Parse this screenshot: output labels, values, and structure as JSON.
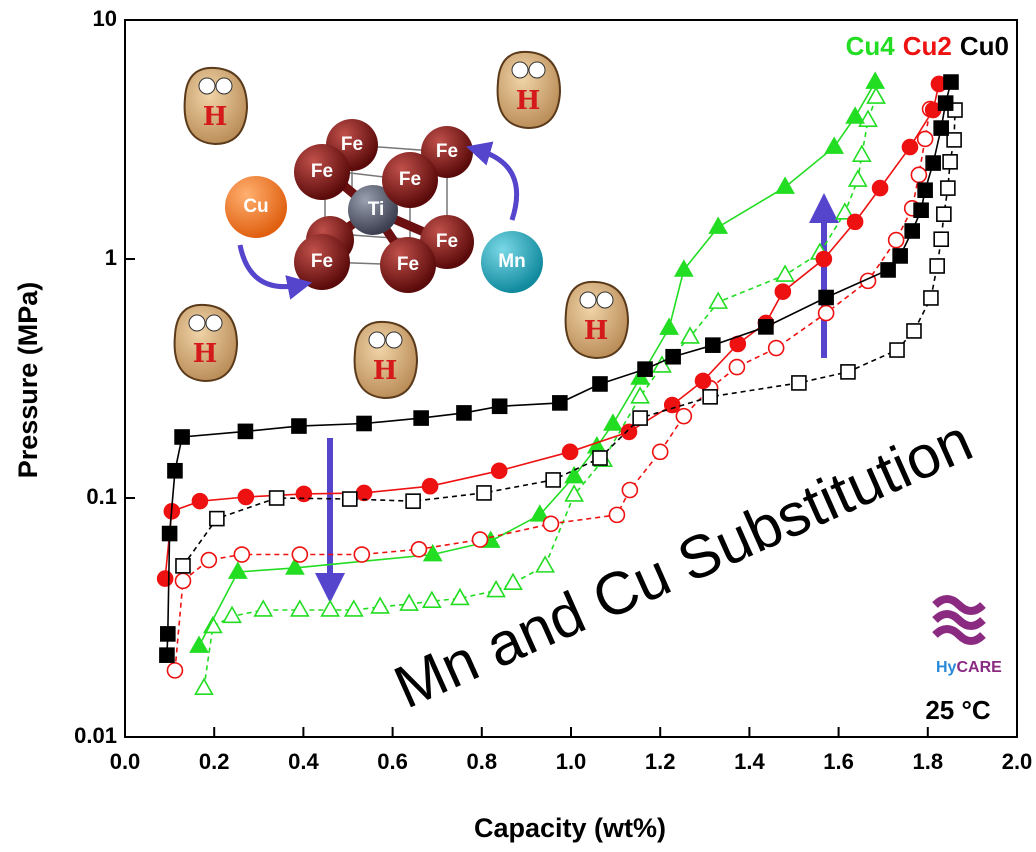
{
  "chart_data": {
    "type": "scatter",
    "x_label": "Capacity (wt%)",
    "y_label": "Pressure (MPa)",
    "xlim": [
      0,
      2
    ],
    "xticks": [
      {
        "value": 0,
        "label": "0.0"
      },
      0.2,
      0.4,
      0.6,
      0.8,
      {
        "value": 1,
        "label": "1.0"
      },
      1.2,
      1.4,
      1.6,
      1.8,
      {
        "value": 2,
        "label": "2.0"
      }
    ],
    "ylim": [
      0.01,
      10
    ],
    "yticks": [
      0.01,
      0.1,
      1,
      10
    ],
    "log_y": true,
    "legend": "top-right",
    "series": [
      {
        "name": "Cu4",
        "color": "#22dd22",
        "marker": "triangle",
        "absorption": {
          "filled": true,
          "dashed": false,
          "x": [
            0.166,
            0.253,
            0.381,
            0.69,
            0.82,
            0.93,
            1.007,
            1.058,
            1.094,
            1.155,
            1.22,
            1.253,
            1.33,
            1.48,
            1.59,
            1.637,
            1.682
          ],
          "values": [
            0.024,
            0.049,
            0.051,
            0.058,
            0.066,
            0.085,
            0.123,
            0.164,
            0.204,
            0.318,
            0.514,
            0.9,
            1.36,
            2.0,
            2.94,
            3.93,
            5.5
          ]
        },
        "desorption": {
          "filled": false,
          "dashed": true,
          "x": [
            0.177,
            0.197,
            0.24,
            0.31,
            0.392,
            0.46,
            0.513,
            0.572,
            0.637,
            0.688,
            0.751,
            0.832,
            0.87,
            0.942,
            1.007,
            1.072,
            1.155,
            1.204,
            1.267,
            1.33,
            1.48,
            1.558,
            1.614,
            1.643,
            1.652,
            1.666,
            1.684
          ],
          "values": [
            0.016,
            0.029,
            0.032,
            0.034,
            0.034,
            0.034,
            0.034,
            0.035,
            0.036,
            0.037,
            0.038,
            0.041,
            0.044,
            0.052,
            0.103,
            0.144,
            0.265,
            0.357,
            0.472,
            0.66,
            0.857,
            1.06,
            1.56,
            2.14,
            2.72,
            3.81,
            4.76
          ]
        }
      },
      {
        "name": "Cu2",
        "color": "#ee1111",
        "marker": "circle",
        "absorption": {
          "filled": true,
          "dashed": false,
          "x": [
            0.09,
            0.105,
            0.168,
            0.271,
            0.401,
            0.536,
            0.684,
            0.839,
            0.998,
            1.13,
            1.227,
            1.296,
            1.374,
            1.437,
            1.475,
            1.567,
            1.637,
            1.693,
            1.76,
            1.812,
            1.825
          ],
          "values": [
            0.046,
            0.088,
            0.097,
            0.101,
            0.104,
            0.105,
            0.112,
            0.13,
            0.156,
            0.189,
            0.245,
            0.309,
            0.441,
            0.54,
            0.73,
            1.0,
            1.43,
            1.98,
            2.94,
            4.2,
            5.4
          ]
        },
        "desorption": {
          "filled": false,
          "dashed": true,
          "x": [
            0.112,
            0.13,
            0.188,
            0.262,
            0.392,
            0.531,
            0.659,
            0.796,
            0.955,
            1.103,
            1.132,
            1.2,
            1.253,
            1.312,
            1.372,
            1.46,
            1.572,
            1.666,
            1.729,
            1.765,
            1.78,
            1.794,
            1.805
          ],
          "values": [
            0.019,
            0.045,
            0.055,
            0.058,
            0.058,
            0.058,
            0.061,
            0.067,
            0.078,
            0.085,
            0.108,
            0.156,
            0.22,
            0.288,
            0.353,
            0.424,
            0.594,
            0.81,
            1.2,
            1.63,
            2.25,
            3.18,
            4.24
          ]
        }
      },
      {
        "name": "Cu0",
        "color": "#000000",
        "marker": "square",
        "absorption": {
          "filled": true,
          "dashed": false,
          "x": [
            0.094,
            0.096,
            0.1,
            0.112,
            0.128,
            0.27,
            0.39,
            0.536,
            0.664,
            0.76,
            0.84,
            0.975,
            1.065,
            1.166,
            1.229,
            1.318,
            1.437,
            1.572,
            1.711,
            1.738,
            1.765,
            1.785,
            1.794,
            1.812,
            1.83,
            1.84,
            1.852
          ],
          "values": [
            0.022,
            0.027,
            0.071,
            0.13,
            0.18,
            0.19,
            0.2,
            0.205,
            0.216,
            0.227,
            0.242,
            0.25,
            0.3,
            0.346,
            0.39,
            0.436,
            0.52,
            0.69,
            0.9,
            1.03,
            1.31,
            1.6,
            1.94,
            2.52,
            3.53,
            4.49,
            5.5
          ]
        },
        "desorption": {
          "filled": false,
          "dashed": true,
          "x": [
            0.13,
            0.206,
            0.34,
            0.504,
            0.646,
            0.805,
            0.96,
            1.065,
            1.155,
            1.312,
            1.511,
            1.621,
            1.731,
            1.769,
            1.807,
            1.821,
            1.83,
            1.836,
            1.845,
            1.85,
            1.859,
            1.861
          ],
          "values": [
            0.052,
            0.082,
            0.1,
            0.099,
            0.097,
            0.105,
            0.119,
            0.147,
            0.216,
            0.265,
            0.303,
            0.337,
            0.416,
            0.5,
            0.687,
            0.935,
            1.21,
            1.54,
            1.98,
            2.55,
            3.15,
            4.2
          ]
        }
      }
    ],
    "annotations": [
      "Mn and Cu Substitution",
      "25 °C"
    ],
    "logo": [
      "Hy",
      "CARE"
    ]
  },
  "illustration": {
    "atoms": [
      "Fe",
      "Fe",
      "Fe",
      "Fe",
      "Fe",
      "Fe",
      "Fe",
      "Ti"
    ],
    "substituents": [
      "Cu",
      "Mn"
    ],
    "mascots": [
      "H",
      "H",
      "H",
      "H",
      "H"
    ]
  }
}
